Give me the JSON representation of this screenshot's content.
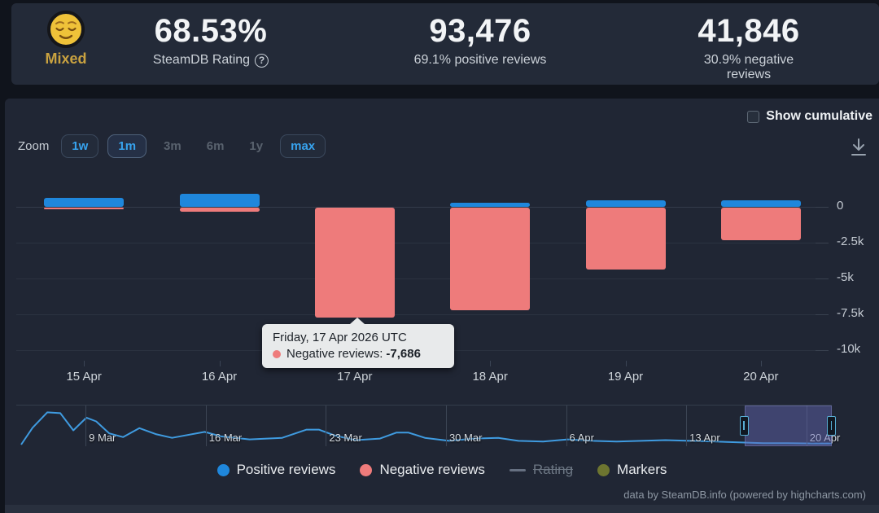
{
  "header": {
    "sentiment": {
      "icon": "relieved-face-emoji",
      "label": "Mixed",
      "color": "#c9a240"
    },
    "stats": [
      {
        "value": "68.53%",
        "caption": "SteamDB Rating",
        "has_help_icon": true
      },
      {
        "value": "93,476",
        "caption": "69.1% positive reviews"
      },
      {
        "value": "41,846",
        "caption": "30.9% negative reviews"
      }
    ]
  },
  "toolbar": {
    "zoom_label": "Zoom",
    "zoom_options": [
      {
        "label": "1w",
        "state": "bordered"
      },
      {
        "label": "1m",
        "state": "selected"
      },
      {
        "label": "3m",
        "state": "disabled"
      },
      {
        "label": "6m",
        "state": "disabled"
      },
      {
        "label": "1y",
        "state": "disabled"
      },
      {
        "label": "max",
        "state": "bordered"
      }
    ],
    "show_cumulative_label": "Show cumulative",
    "show_cumulative_checked": false,
    "download_icon": "download-icon"
  },
  "chart_data": {
    "type": "bar",
    "title": "",
    "categories": [
      "15 Apr",
      "16 Apr",
      "17 Apr",
      "18 Apr",
      "19 Apr",
      "20 Apr"
    ],
    "series": [
      {
        "name": "Positive reviews",
        "color": "#1f87dc",
        "values": [
          620,
          900,
          0,
          280,
          450,
          450
        ]
      },
      {
        "name": "Negative reviews",
        "color": "#ee7b7b",
        "values": [
          -80,
          -260,
          -7686,
          -7150,
          -4300,
          -2250
        ]
      }
    ],
    "ylabel": "",
    "ylim": [
      -10800,
      1500
    ],
    "yticks": [
      "0",
      "-2.5k",
      "-5k",
      "-7.5k",
      "-10k"
    ],
    "ytick_values": [
      0,
      -2500,
      -5000,
      -7500,
      -10000
    ],
    "grid": true,
    "legend_position": "bottom",
    "tooltip": {
      "title": "Friday, 17 Apr 2026 UTC",
      "series_label": "Negative reviews:",
      "value": "-7,686",
      "dot_color": "#ee7b7b",
      "anchor_category": "17 Apr"
    },
    "navigator": {
      "labels": [
        "9 Mar",
        "16 Mar",
        "23 Mar",
        "30 Mar",
        "6 Apr",
        "13 Apr",
        "20 Apr"
      ],
      "selection": {
        "from": 0.893,
        "to": 1.0
      },
      "line_color": "#3f9be0",
      "sparkline": [
        [
          0.006,
          1.0
        ],
        [
          0.02,
          0.55
        ],
        [
          0.038,
          0.14
        ],
        [
          0.054,
          0.16
        ],
        [
          0.07,
          0.62
        ],
        [
          0.086,
          0.28
        ],
        [
          0.098,
          0.38
        ],
        [
          0.114,
          0.7
        ],
        [
          0.131,
          0.8
        ],
        [
          0.151,
          0.56
        ],
        [
          0.171,
          0.72
        ],
        [
          0.191,
          0.82
        ],
        [
          0.231,
          0.66
        ],
        [
          0.251,
          0.78
        ],
        [
          0.286,
          0.86
        ],
        [
          0.326,
          0.82
        ],
        [
          0.356,
          0.6
        ],
        [
          0.371,
          0.6
        ],
        [
          0.391,
          0.76
        ],
        [
          0.416,
          0.88
        ],
        [
          0.446,
          0.84
        ],
        [
          0.466,
          0.68
        ],
        [
          0.481,
          0.68
        ],
        [
          0.501,
          0.82
        ],
        [
          0.531,
          0.9
        ],
        [
          0.561,
          0.84
        ],
        [
          0.591,
          0.82
        ],
        [
          0.616,
          0.9
        ],
        [
          0.646,
          0.92
        ],
        [
          0.676,
          0.86
        ],
        [
          0.706,
          0.9
        ],
        [
          0.736,
          0.92
        ],
        [
          0.766,
          0.9
        ],
        [
          0.796,
          0.88
        ],
        [
          0.826,
          0.9
        ],
        [
          0.856,
          0.92
        ],
        [
          0.886,
          0.94
        ],
        [
          0.916,
          0.96
        ],
        [
          0.946,
          0.96
        ],
        [
          0.976,
          0.97
        ],
        [
          1.0,
          0.97
        ]
      ]
    }
  },
  "legend": {
    "items": [
      {
        "label": "Positive reviews",
        "swatch": "circle",
        "color": "#1f87dc",
        "enabled": true
      },
      {
        "label": "Negative reviews",
        "swatch": "circle",
        "color": "#ee7b7b",
        "enabled": true
      },
      {
        "label": "Rating",
        "swatch": "dash",
        "color": "#667081",
        "enabled": false
      },
      {
        "label": "Markers",
        "swatch": "circle",
        "color": "#6d7530",
        "enabled": true
      }
    ]
  },
  "footer": {
    "credit": "data by SteamDB.info (powered by highcharts.com)"
  }
}
